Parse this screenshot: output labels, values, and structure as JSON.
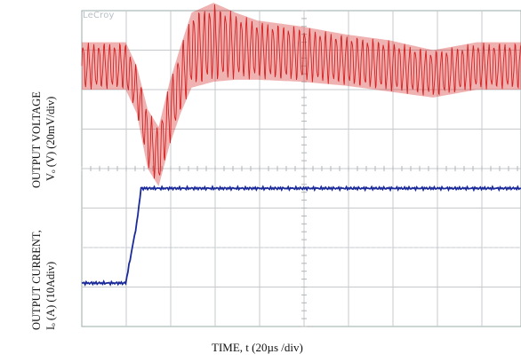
{
  "brand": "LeCroy",
  "xlabel": "TIME, t (20µs /div)",
  "ylabel_top": {
    "line1": "OUTPUT VOLTAGE",
    "line2": "Vₒ (V) (20mV/div)"
  },
  "ylabel_bottom": {
    "line1": "OUTPUT CURRENT,",
    "line2": "Iₒ (A)  (10Adiv)"
  },
  "chart_data": [
    {
      "type": "line",
      "name": "output-voltage",
      "grid": true,
      "xunit": "µs",
      "yunit": "mV",
      "xlim": [
        0,
        200
      ],
      "ylim": [
        -40,
        40
      ],
      "color": "#d42020",
      "x": [
        0,
        20,
        25,
        30,
        35,
        40,
        45,
        50,
        60,
        70,
        80,
        100,
        120,
        140,
        160,
        180,
        200
      ],
      "values": [
        12,
        12,
        0,
        -25,
        -34,
        -12,
        5,
        20,
        24,
        22,
        20,
        18,
        15,
        12,
        8,
        12,
        12
      ],
      "ripple_pp": [
        24,
        24,
        24,
        30,
        30,
        32,
        34,
        38,
        40,
        34,
        30,
        28,
        26,
        26,
        24,
        24,
        24
      ]
    },
    {
      "type": "line",
      "name": "output-current",
      "grid": true,
      "xunit": "µs",
      "yunit": "A",
      "xlim": [
        0,
        200
      ],
      "ylim": [
        0,
        40
      ],
      "color": "#1a2a9a",
      "x": [
        0,
        20,
        25,
        27,
        200
      ],
      "values": [
        11,
        11,
        26,
        35,
        35
      ]
    }
  ]
}
